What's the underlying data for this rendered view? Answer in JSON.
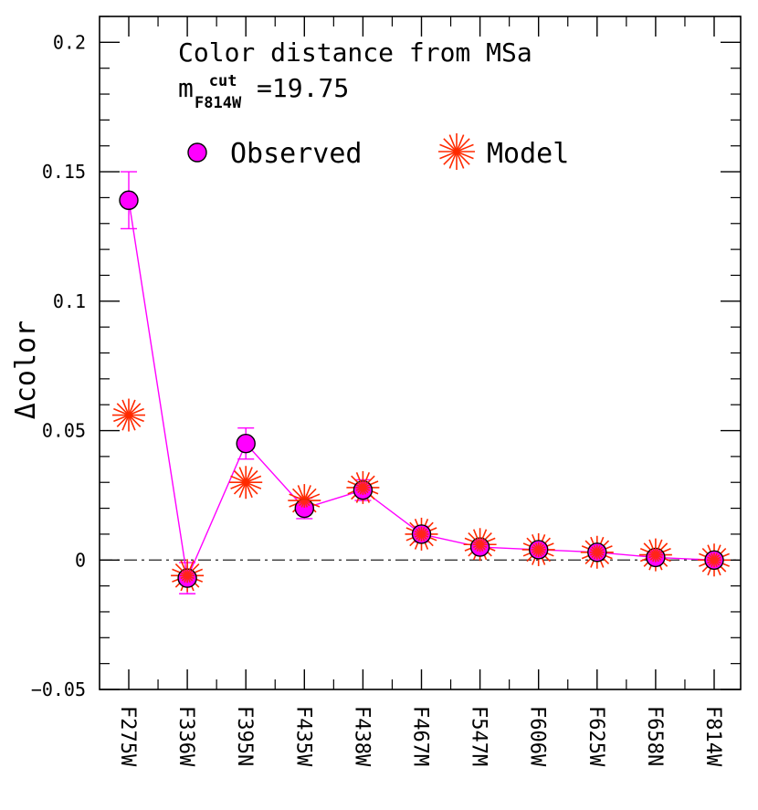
{
  "chart_data": {
    "type": "scatter",
    "title_line1": "Color distance from MSa",
    "title_line2": {
      "prefix": "m",
      "superscript": "cut",
      "subscript": "F814W",
      "suffix": "=19.75"
    },
    "ylabel": "Δcolor",
    "xlabel": "",
    "categories": [
      "F275W",
      "F336W",
      "F395N",
      "F435W",
      "F438W",
      "F467M",
      "F547M",
      "F606W",
      "F625W",
      "F658N",
      "F814W"
    ],
    "ylim": [
      -0.05,
      0.21
    ],
    "yticks": [
      -0.05,
      0,
      0.05,
      0.1,
      0.15,
      0.2
    ],
    "ytick_labels": [
      "−0.05",
      "0",
      "0.05",
      "0.1",
      "0.15",
      "0.2"
    ],
    "reference_line_y": 0,
    "legend": {
      "position": "top-right",
      "observed_label": "Observed",
      "model_label": "Model"
    },
    "series": [
      {
        "name": "Observed",
        "marker": "circle",
        "color": "#ff00ff",
        "connected": true,
        "values": [
          0.139,
          -0.007,
          0.045,
          0.02,
          0.027,
          0.01,
          0.005,
          0.004,
          0.003,
          0.001,
          0.0
        ],
        "errors": [
          0.011,
          0.006,
          0.006,
          0.004,
          0.004,
          0.003,
          0.002,
          0.002,
          0.002,
          0.002,
          0.002
        ]
      },
      {
        "name": "Model",
        "marker": "asterisk",
        "color": "#ff2a00",
        "values": [
          0.056,
          -0.006,
          0.03,
          0.023,
          0.028,
          0.01,
          0.006,
          0.004,
          0.003,
          0.002,
          0.0
        ]
      }
    ]
  }
}
